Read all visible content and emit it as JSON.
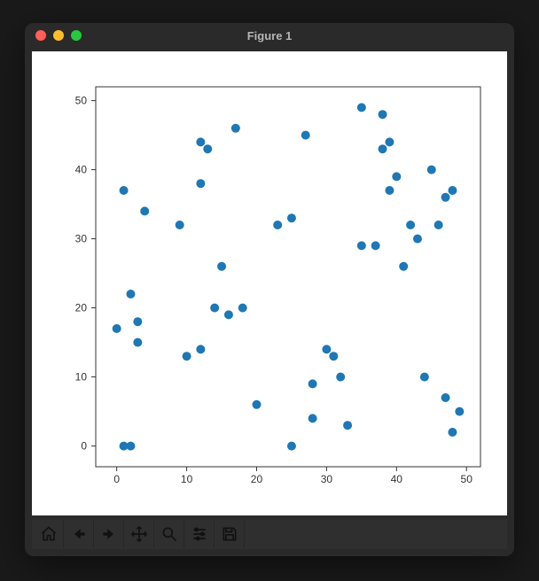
{
  "window": {
    "title": "Figure 1"
  },
  "chart": {
    "type": "scatter",
    "background_color": "#ffffff",
    "frame_color": "#333333",
    "marker": {
      "color": "#1f77b4",
      "radius": 5,
      "shape": "circle",
      "edge": "none"
    },
    "xlim": [
      -3,
      52
    ],
    "ylim": [
      -3,
      52
    ],
    "xticks": [
      0,
      10,
      20,
      30,
      40,
      50
    ],
    "yticks": [
      0,
      10,
      20,
      30,
      40,
      50
    ],
    "tick_fontsize": 12,
    "tick_color": "#333333",
    "points": [
      [
        0,
        17
      ],
      [
        1,
        37
      ],
      [
        1,
        0
      ],
      [
        2,
        0
      ],
      [
        2,
        22
      ],
      [
        3,
        15
      ],
      [
        3,
        18
      ],
      [
        4,
        34
      ],
      [
        9,
        32
      ],
      [
        10,
        13
      ],
      [
        12,
        14
      ],
      [
        12,
        38
      ],
      [
        12,
        44
      ],
      [
        13,
        43
      ],
      [
        14,
        20
      ],
      [
        15,
        26
      ],
      [
        16,
        19
      ],
      [
        17,
        46
      ],
      [
        18,
        20
      ],
      [
        20,
        6
      ],
      [
        23,
        32
      ],
      [
        25,
        33
      ],
      [
        25,
        0
      ],
      [
        27,
        45
      ],
      [
        28,
        9
      ],
      [
        28,
        4
      ],
      [
        30,
        14
      ],
      [
        31,
        13
      ],
      [
        32,
        10
      ],
      [
        33,
        3
      ],
      [
        35,
        29
      ],
      [
        35,
        49
      ],
      [
        37,
        29
      ],
      [
        38,
        43
      ],
      [
        38,
        48
      ],
      [
        39,
        37
      ],
      [
        39,
        44
      ],
      [
        40,
        39
      ],
      [
        41,
        26
      ],
      [
        42,
        32
      ],
      [
        43,
        30
      ],
      [
        44,
        10
      ],
      [
        45,
        40
      ],
      [
        46,
        32
      ],
      [
        47,
        7
      ],
      [
        47,
        36
      ],
      [
        48,
        2
      ],
      [
        48,
        37
      ],
      [
        49,
        5
      ]
    ]
  },
  "toolbar": {
    "buttons": [
      {
        "name": "home-icon",
        "label": "Home"
      },
      {
        "name": "back-icon",
        "label": "Back"
      },
      {
        "name": "forward-icon",
        "label": "Forward"
      },
      {
        "name": "pan-icon",
        "label": "Pan"
      },
      {
        "name": "zoom-icon",
        "label": "Zoom"
      },
      {
        "name": "configure-icon",
        "label": "Configure subplots"
      },
      {
        "name": "save-icon",
        "label": "Save"
      }
    ]
  }
}
